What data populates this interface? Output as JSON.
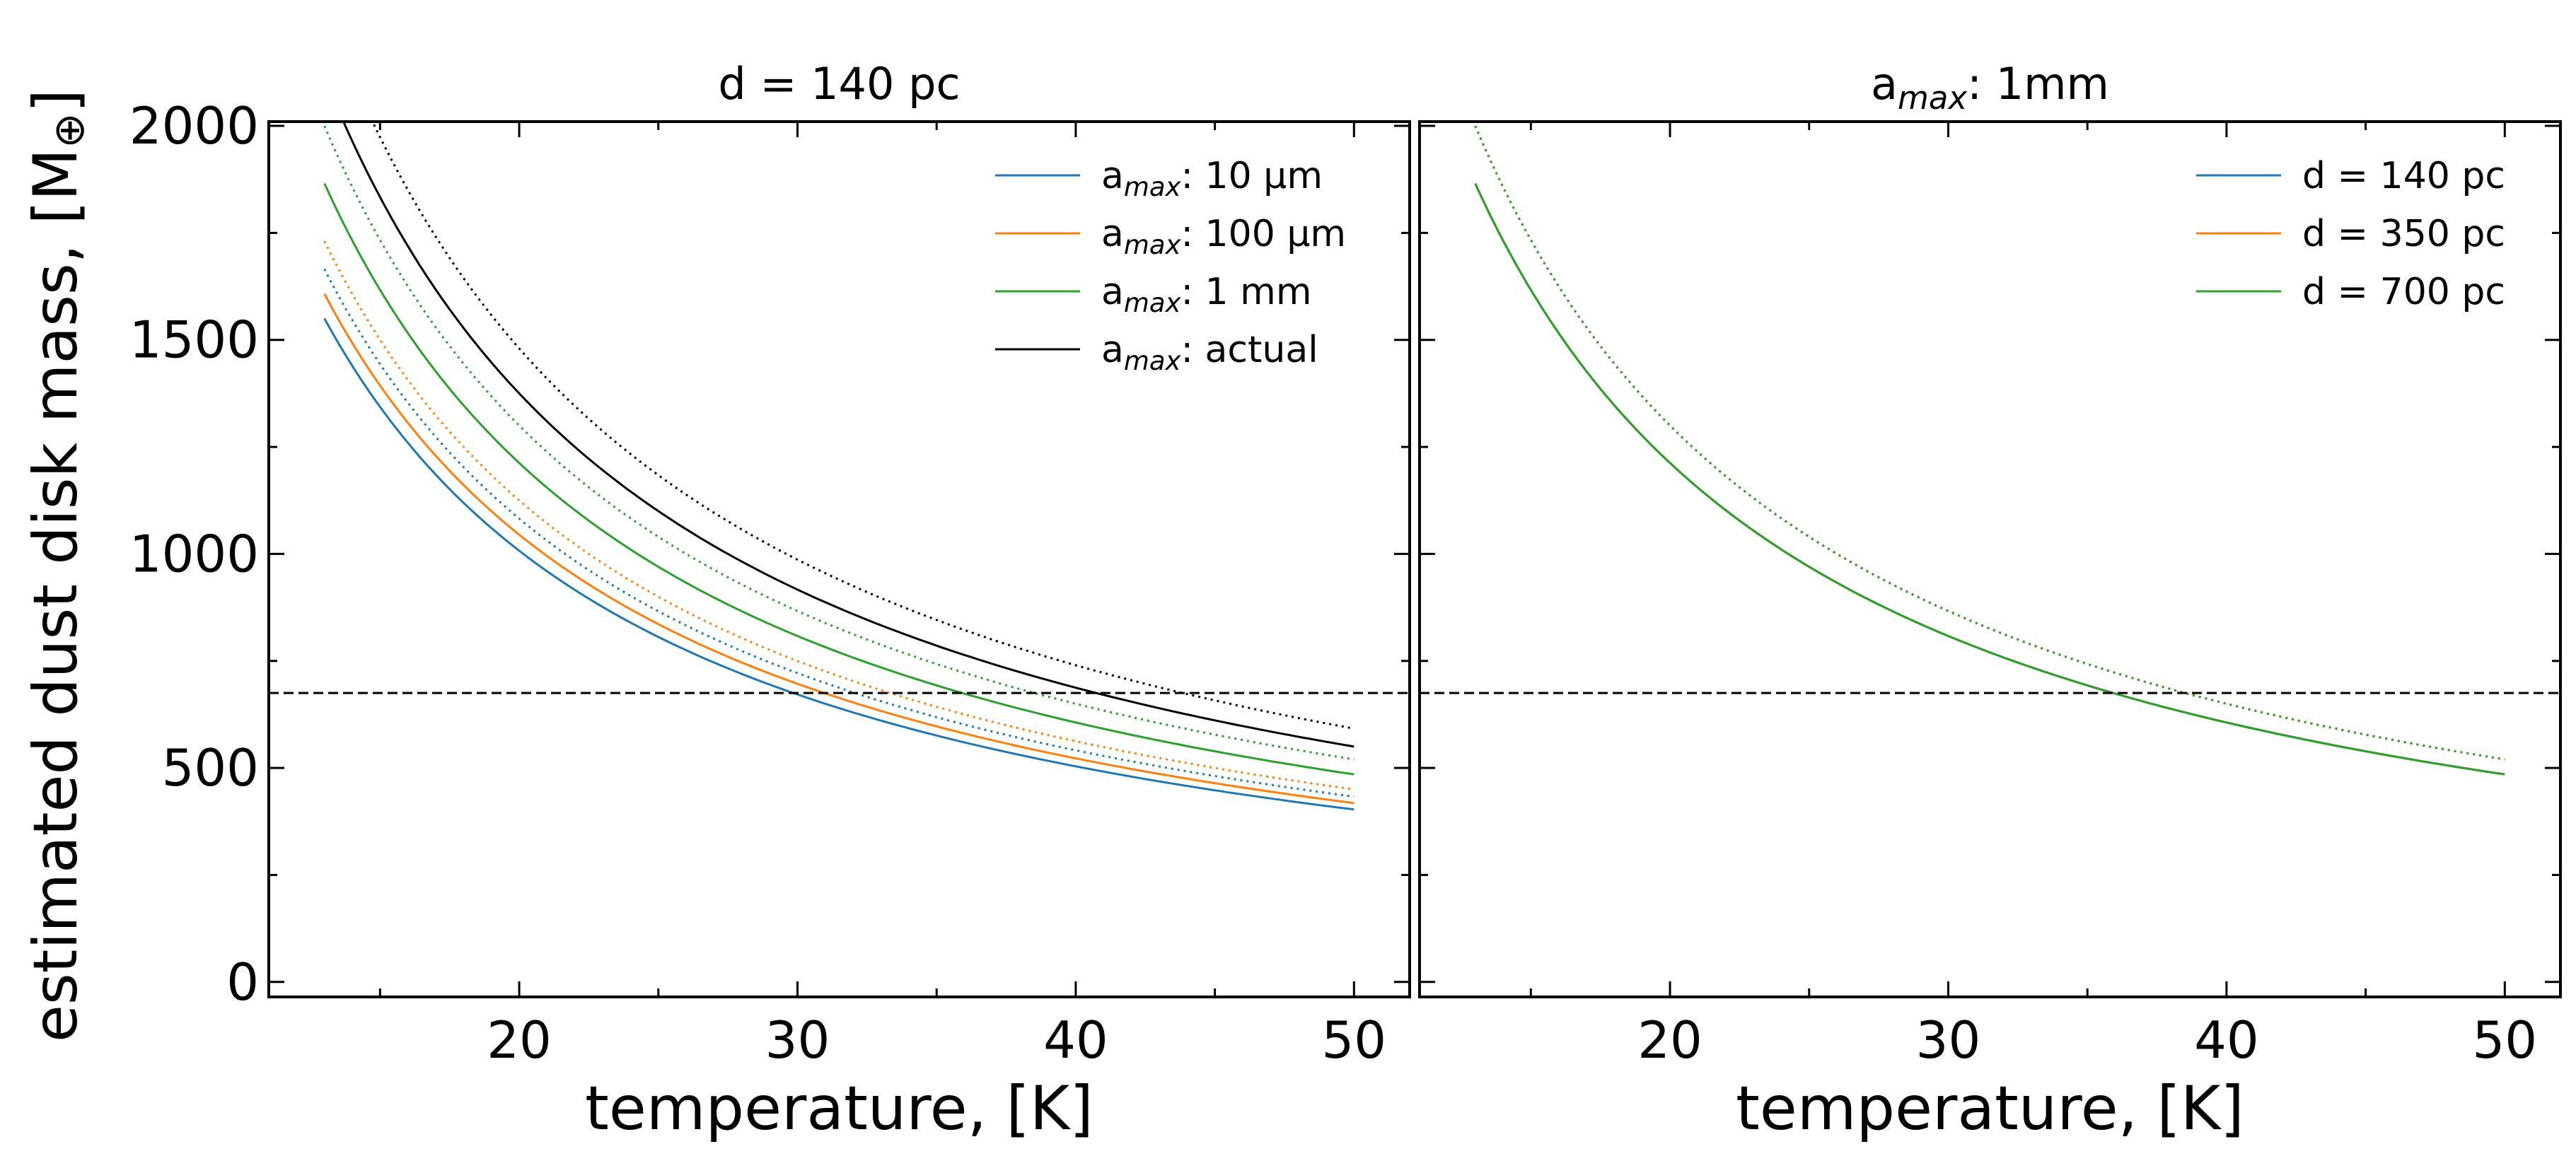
{
  "figure": {
    "ylabel_main": "estimated dust disk mass, [M",
    "ylabel_symbol": "⊕",
    "ylabel_close": "]"
  },
  "colors": {
    "blue": "#1f77b4",
    "orange": "#ff7f0e",
    "green": "#2ca02c",
    "black": "#000000"
  },
  "chart_data": [
    {
      "type": "line",
      "title": "d = 140 pc",
      "xlabel": "temperature, [K]",
      "ylabel": "estimated dust disk mass, [M⊕]",
      "xlim": [
        11,
        52
      ],
      "ylim": [
        -35,
        2010
      ],
      "xticks": [
        20,
        30,
        40,
        50
      ],
      "yticks": [
        0,
        500,
        1000,
        1500,
        2000
      ],
      "x_minor": [
        15,
        25,
        35,
        45
      ],
      "y_minor": [
        250,
        750,
        1250,
        1750
      ],
      "hline": 675,
      "legend_position": "upper right",
      "series": [
        {
          "name": "a_max: 10 μm",
          "label_base": "a",
          "label_sub": "max",
          "label_rest": ": 10 μm",
          "color_key": "blue",
          "style": "solid",
          "t_start": 13,
          "t_end": 50,
          "value_at_50": 403
        },
        {
          "name": "a_max: 10 μm (dotted)",
          "color_key": "blue",
          "style": "dotted",
          "t_start": 13,
          "t_end": 50,
          "value_at_50": 433
        },
        {
          "name": "a_max: 100 μm",
          "label_base": "a",
          "label_sub": "max",
          "label_rest": ": 100 μm",
          "color_key": "orange",
          "style": "solid",
          "t_start": 13,
          "t_end": 50,
          "value_at_50": 418
        },
        {
          "name": "a_max: 100 μm (dotted)",
          "color_key": "orange",
          "style": "dotted",
          "t_start": 13,
          "t_end": 50,
          "value_at_50": 450
        },
        {
          "name": "a_max: 1 mm",
          "label_base": "a",
          "label_sub": "max",
          "label_rest": ": 1 mm",
          "color_key": "green",
          "style": "solid",
          "t_start": 13,
          "t_end": 50,
          "value_at_50": 485
        },
        {
          "name": "a_max: 1 mm (dotted)",
          "color_key": "green",
          "style": "dotted",
          "t_start": 13,
          "t_end": 50,
          "value_at_50": 520
        },
        {
          "name": "a_max: actual",
          "label_base": "a",
          "label_sub": "max",
          "label_rest": ": actual",
          "color_key": "black",
          "style": "solid",
          "t_start": 13,
          "t_end": 50,
          "value_at_50": 550
        },
        {
          "name": "a_max: actual (dotted)",
          "color_key": "black",
          "style": "dotted",
          "t_start": 13,
          "t_end": 50,
          "value_at_50": 592
        }
      ]
    },
    {
      "type": "line",
      "title_base": "a",
      "title_sub": "max",
      "title_rest": ": 1mm",
      "xlabel": "temperature, [K]",
      "ylabel": "",
      "xlim": [
        11,
        52
      ],
      "ylim": [
        -35,
        2010
      ],
      "xticks": [
        20,
        30,
        40,
        50
      ],
      "yticks": [
        0,
        500,
        1000,
        1500,
        2000
      ],
      "x_minor": [
        15,
        25,
        35,
        45
      ],
      "y_minor": [
        250,
        750,
        1250,
        1750
      ],
      "hline": 675,
      "legend_position": "upper right",
      "series": [
        {
          "name": "d = 140 pc",
          "label": "d = 140 pc",
          "color_key": "blue",
          "style": "solid",
          "t_start": 13,
          "t_end": 50,
          "value_at_50": 485
        },
        {
          "name": "d = 350 pc",
          "label": "d = 350 pc",
          "color_key": "orange",
          "style": "solid",
          "t_start": 13,
          "t_end": 50,
          "value_at_50": 485
        },
        {
          "name": "d = 700 pc",
          "label": "d = 700 pc",
          "color_key": "green",
          "style": "solid",
          "t_start": 13,
          "t_end": 50,
          "value_at_50": 485
        },
        {
          "name": "d = 140 pc (dotted)",
          "color_key": "blue",
          "style": "dotted",
          "t_start": 13,
          "t_end": 50,
          "value_at_50": 520
        },
        {
          "name": "d = 350 pc (dotted)",
          "color_key": "orange",
          "style": "dotted",
          "t_start": 13,
          "t_end": 50,
          "value_at_50": 520
        },
        {
          "name": "d = 700 pc (dotted)",
          "color_key": "green",
          "style": "dotted",
          "t_start": 13,
          "t_end": 50,
          "value_at_50": 520
        }
      ]
    }
  ]
}
